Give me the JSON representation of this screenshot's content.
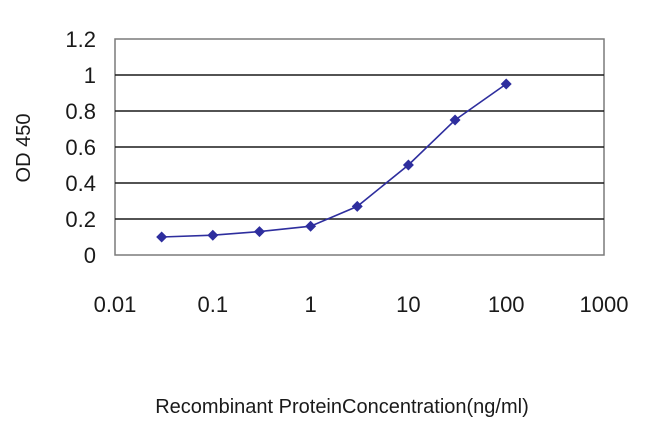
{
  "chart_data": {
    "type": "line",
    "title": "",
    "xlabel": "Recombinant ProteinConcentration(ng/ml)",
    "ylabel": "OD 450",
    "xscale": "log",
    "xlim": [
      0.01,
      1000
    ],
    "ylim": [
      0,
      1.2
    ],
    "xticks": [
      "0.01",
      "0.1",
      "1",
      "10",
      "100",
      "1000"
    ],
    "yticks": [
      "0",
      "0.2",
      "0.4",
      "0.6",
      "0.8",
      "1",
      "1.2"
    ],
    "grid": "horizontal",
    "legend": "none",
    "series": [
      {
        "x": [
          0.03,
          0.1,
          0.3,
          1,
          3,
          10,
          30,
          100
        ],
        "y": [
          0.1,
          0.11,
          0.13,
          0.16,
          0.27,
          0.5,
          0.75,
          0.95
        ],
        "color": "#2e2e9e"
      }
    ]
  }
}
